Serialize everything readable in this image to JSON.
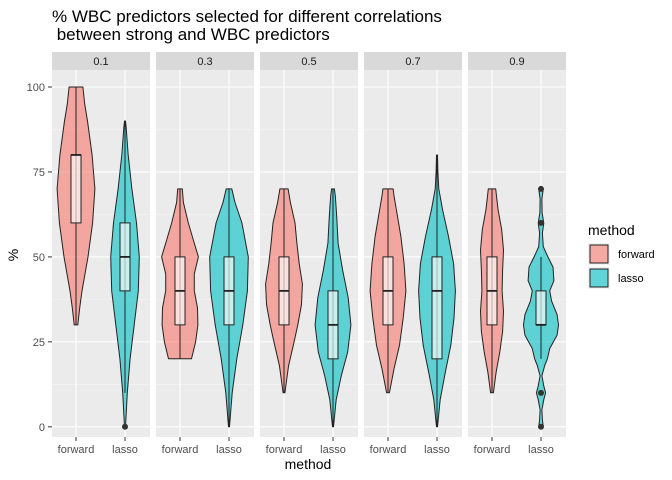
{
  "chart_data": {
    "type": "violin",
    "title_line1": "% WBC predictors selected for different correlations",
    "title_line2": " between strong and WBC predictors",
    "xlabel": "method",
    "ylabel": "%",
    "ylim": [
      -3,
      105
    ],
    "yticks": [
      0,
      25,
      50,
      75,
      100
    ],
    "categories": [
      "forward",
      "lasso"
    ],
    "legend": {
      "title": "method",
      "position": "right",
      "entries": [
        {
          "label": "forward",
          "color": "#F8766D"
        },
        {
          "label": "lasso",
          "color": "#00BFC4"
        }
      ]
    },
    "facets": [
      {
        "label": "0.1",
        "groups": [
          {
            "method": "forward",
            "box": {
              "lower_whisker": 30,
              "q1": 60,
              "median": 80,
              "q3": 80,
              "upper_whisker": 100
            },
            "outliers": [],
            "density": [
              [
                30,
                0.08
              ],
              [
                35,
                0.16
              ],
              [
                40,
                0.26
              ],
              [
                50,
                0.52
              ],
              [
                60,
                0.72
              ],
              [
                70,
                0.82
              ],
              [
                80,
                0.7
              ],
              [
                90,
                0.5
              ],
              [
                95,
                0.38
              ],
              [
                100,
                0.3
              ]
            ]
          },
          {
            "method": "lasso",
            "box": {
              "lower_whisker": 10,
              "q1": 40,
              "median": 50,
              "q3": 60,
              "upper_whisker": 90
            },
            "outliers": [
              0
            ],
            "density": [
              [
                0,
                0.02
              ],
              [
                10,
                0.1
              ],
              [
                20,
                0.22
              ],
              [
                30,
                0.4
              ],
              [
                40,
                0.58
              ],
              [
                50,
                0.62
              ],
              [
                60,
                0.5
              ],
              [
                70,
                0.3
              ],
              [
                80,
                0.14
              ],
              [
                88,
                0.05
              ],
              [
                90,
                0.02
              ]
            ]
          }
        ]
      },
      {
        "label": "0.3",
        "groups": [
          {
            "method": "forward",
            "box": {
              "lower_whisker": 20,
              "q1": 30,
              "median": 40,
              "q3": 50,
              "upper_whisker": 70
            },
            "outliers": [],
            "density": [
              [
                20,
                0.5
              ],
              [
                25,
                0.68
              ],
              [
                30,
                0.78
              ],
              [
                35,
                0.76
              ],
              [
                40,
                0.62
              ],
              [
                45,
                0.62
              ],
              [
                50,
                0.8
              ],
              [
                55,
                0.58
              ],
              [
                60,
                0.36
              ],
              [
                66,
                0.15
              ],
              [
                70,
                0.1
              ]
            ]
          },
          {
            "method": "lasso",
            "box": {
              "lower_whisker": 0,
              "q1": 30,
              "median": 40,
              "q3": 50,
              "upper_whisker": 70
            },
            "outliers": [],
            "density": [
              [
                0,
                0.02
              ],
              [
                10,
                0.14
              ],
              [
                20,
                0.34
              ],
              [
                30,
                0.6
              ],
              [
                40,
                0.8
              ],
              [
                50,
                0.84
              ],
              [
                60,
                0.56
              ],
              [
                66,
                0.26
              ],
              [
                70,
                0.12
              ]
            ]
          }
        ]
      },
      {
        "label": "0.5",
        "groups": [
          {
            "method": "forward",
            "box": {
              "lower_whisker": 10,
              "q1": 30,
              "median": 40,
              "q3": 50,
              "upper_whisker": 70
            },
            "outliers": [],
            "density": [
              [
                10,
                0.04
              ],
              [
                18,
                0.2
              ],
              [
                25,
                0.44
              ],
              [
                30,
                0.6
              ],
              [
                36,
                0.76
              ],
              [
                42,
                0.8
              ],
              [
                48,
                0.66
              ],
              [
                54,
                0.56
              ],
              [
                60,
                0.48
              ],
              [
                66,
                0.28
              ],
              [
                70,
                0.18
              ]
            ]
          },
          {
            "method": "lasso",
            "box": {
              "lower_whisker": 0,
              "q1": 20,
              "median": 30,
              "q3": 40,
              "upper_whisker": 70
            },
            "outliers": [],
            "density": [
              [
                0,
                0.02
              ],
              [
                8,
                0.14
              ],
              [
                15,
                0.36
              ],
              [
                22,
                0.64
              ],
              [
                30,
                0.78
              ],
              [
                38,
                0.66
              ],
              [
                46,
                0.42
              ],
              [
                54,
                0.22
              ],
              [
                62,
                0.16
              ],
              [
                68,
                0.1
              ],
              [
                70,
                0.06
              ]
            ]
          }
        ]
      },
      {
        "label": "0.7",
        "groups": [
          {
            "method": "forward",
            "box": {
              "lower_whisker": 10,
              "q1": 30,
              "median": 40,
              "q3": 50,
              "upper_whisker": 70
            },
            "outliers": [],
            "density": [
              [
                10,
                0.06
              ],
              [
                17,
                0.26
              ],
              [
                24,
                0.5
              ],
              [
                32,
                0.66
              ],
              [
                40,
                0.78
              ],
              [
                48,
                0.7
              ],
              [
                56,
                0.56
              ],
              [
                64,
                0.36
              ],
              [
                68,
                0.26
              ],
              [
                70,
                0.22
              ]
            ]
          },
          {
            "method": "lasso",
            "box": {
              "lower_whisker": 0,
              "q1": 20,
              "median": 40,
              "q3": 50,
              "upper_whisker": 80
            },
            "outliers": [],
            "density": [
              [
                0,
                0.02
              ],
              [
                8,
                0.14
              ],
              [
                16,
                0.36
              ],
              [
                24,
                0.6
              ],
              [
                32,
                0.74
              ],
              [
                40,
                0.8
              ],
              [
                48,
                0.72
              ],
              [
                56,
                0.5
              ],
              [
                64,
                0.24
              ],
              [
                70,
                0.08
              ],
              [
                75,
                0.04
              ],
              [
                80,
                0.02
              ]
            ]
          }
        ]
      },
      {
        "label": "0.9",
        "groups": [
          {
            "method": "forward",
            "box": {
              "lower_whisker": 10,
              "q1": 30,
              "median": 40,
              "q3": 50,
              "upper_whisker": 70
            },
            "outliers": [],
            "density": [
              [
                10,
                0.06
              ],
              [
                16,
                0.18
              ],
              [
                22,
                0.34
              ],
              [
                28,
                0.46
              ],
              [
                34,
                0.5
              ],
              [
                40,
                0.44
              ],
              [
                46,
                0.46
              ],
              [
                52,
                0.5
              ],
              [
                58,
                0.42
              ],
              [
                64,
                0.26
              ],
              [
                70,
                0.16
              ]
            ]
          },
          {
            "method": "lasso",
            "box": {
              "lower_whisker": 20,
              "q1": 30,
              "median": 30,
              "q3": 40,
              "upper_whisker": 50
            },
            "outliers": [
              0,
              10,
              60,
              70
            ],
            "density": [
              [
                0,
                0.1
              ],
              [
                2,
                0.06
              ],
              [
                5,
                0.04
              ],
              [
                8,
                0.12
              ],
              [
                10,
                0.2
              ],
              [
                12,
                0.12
              ],
              [
                15,
                0.04
              ],
              [
                18,
                0.16
              ],
              [
                20,
                0.28
              ],
              [
                23,
                0.38
              ],
              [
                27,
                0.7
              ],
              [
                30,
                0.76
              ],
              [
                33,
                0.7
              ],
              [
                37,
                0.46
              ],
              [
                40,
                0.38
              ],
              [
                43,
                0.56
              ],
              [
                47,
                0.52
              ],
              [
                50,
                0.3
              ],
              [
                53,
                0.1
              ],
              [
                57,
                0.06
              ],
              [
                60,
                0.12
              ],
              [
                63,
                0.05
              ],
              [
                67,
                0.04
              ],
              [
                70,
                0.1
              ]
            ]
          }
        ]
      }
    ]
  }
}
